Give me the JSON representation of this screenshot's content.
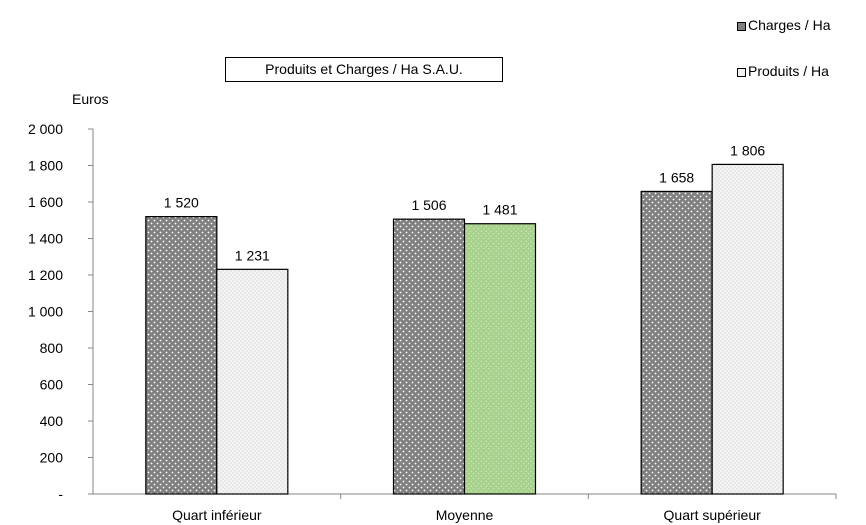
{
  "chart_data": {
    "type": "bar",
    "title": "Produits et Charges / Ha S.A.U.",
    "ylabel": "Euros",
    "xlabel": "",
    "ylim": [
      0,
      2000
    ],
    "yticks": [
      0,
      200,
      400,
      600,
      800,
      1000,
      1200,
      1400,
      1600,
      1800,
      2000
    ],
    "ytick_labels": [
      "-",
      "200",
      "400",
      "600",
      "800",
      "1 000",
      "1 200",
      "1 400",
      "1 600",
      "1 800",
      "2 000"
    ],
    "categories": [
      "Quart inférieur",
      "Moyenne",
      "Quart supérieur"
    ],
    "series": [
      {
        "name": "Charges / Ha",
        "values": [
          1520,
          1506,
          1658
        ],
        "labels": [
          "1 520",
          "1 506",
          "1 658"
        ]
      },
      {
        "name": "Produits / Ha",
        "values": [
          1231,
          1481,
          1806
        ],
        "labels": [
          "1 231",
          "1 481",
          "1 806"
        ]
      }
    ],
    "legend_position": "top-right",
    "grid": false,
    "colors": {
      "charges": "#808080",
      "produits": "#f2f2f2",
      "produits_highlight": "#a9d18e",
      "dots_light": "#ffffff",
      "dots_dark": "#c8c8c8"
    },
    "highlight": {
      "series_index": 1,
      "category_index": 1
    }
  }
}
